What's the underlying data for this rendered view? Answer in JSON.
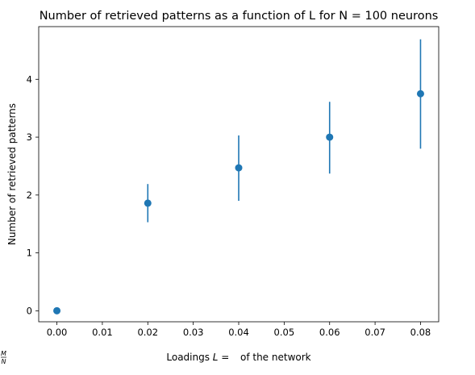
{
  "chart_data": {
    "type": "scatter",
    "title": "Number of retrieved patterns as a function of L for N = 100 neurons",
    "xlabel": {
      "prefix": "Loadings ",
      "var": "L",
      "eq": " = ",
      "num": "M",
      "den": "N",
      "suffix": " of the network"
    },
    "ylabel": "Number of retrieved patterns",
    "xlim": [
      -0.004,
      0.084
    ],
    "ylim": [
      -0.19,
      4.91
    ],
    "x_ticks": [
      0.0,
      0.01,
      0.02,
      0.03,
      0.04,
      0.05,
      0.06,
      0.07,
      0.08
    ],
    "x_tick_labels": [
      "0.00",
      "0.01",
      "0.02",
      "0.03",
      "0.04",
      "0.05",
      "0.06",
      "0.07",
      "0.08"
    ],
    "y_ticks": [
      0,
      1,
      2,
      3,
      4
    ],
    "y_tick_labels": [
      "0",
      "1",
      "2",
      "3",
      "4"
    ],
    "grid": false,
    "color": "#1f77b4",
    "points": [
      {
        "x": 0.0,
        "y": 0.0,
        "lower": 0.0,
        "upper": 0.0
      },
      {
        "x": 0.02,
        "y": 1.86,
        "lower": 1.53,
        "upper": 2.19
      },
      {
        "x": 0.04,
        "y": 2.47,
        "lower": 1.9,
        "upper": 3.03
      },
      {
        "x": 0.06,
        "y": 3.0,
        "lower": 2.37,
        "upper": 3.61
      },
      {
        "x": 0.08,
        "y": 3.75,
        "lower": 2.8,
        "upper": 4.69
      }
    ]
  }
}
